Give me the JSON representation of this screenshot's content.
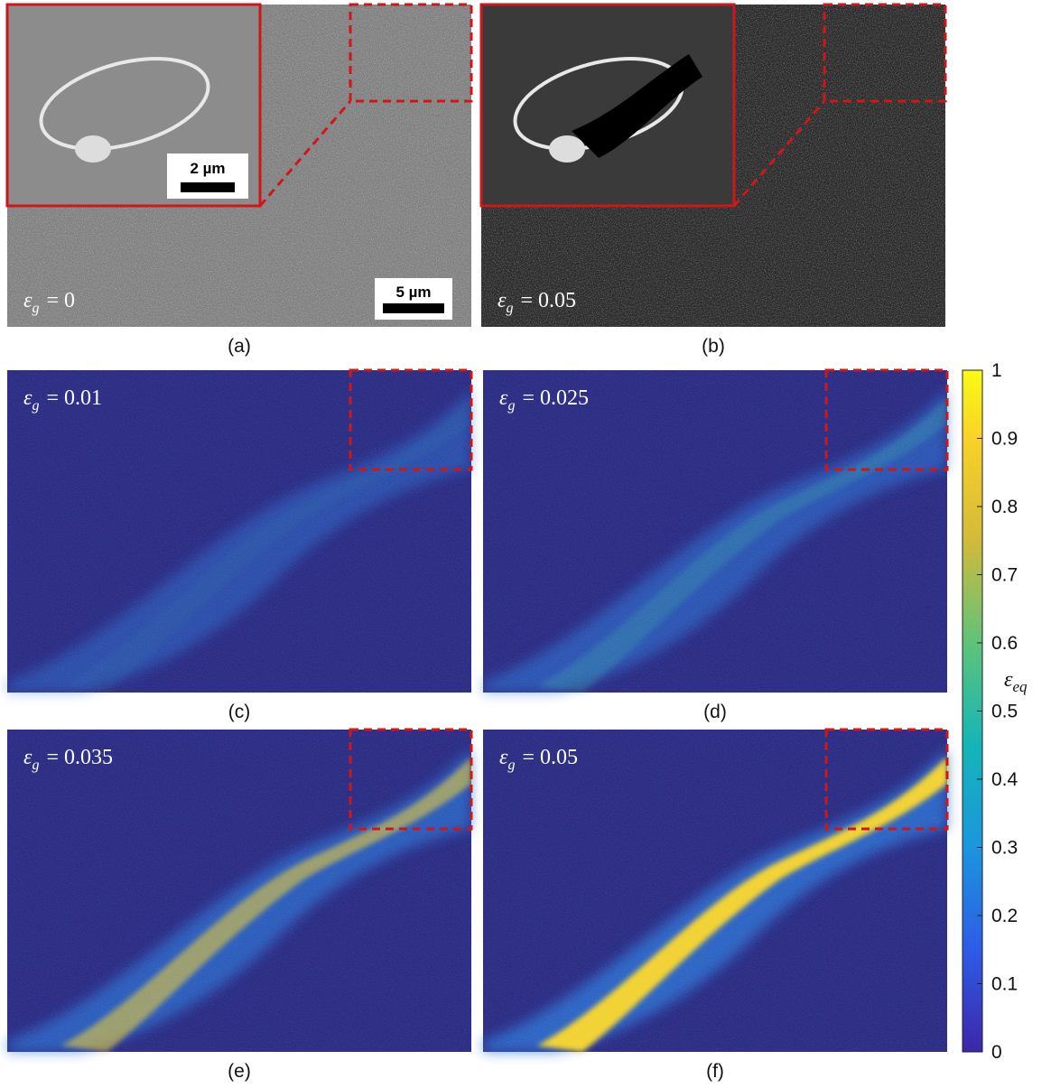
{
  "panels": [
    {
      "label": "(a)",
      "strain": {
        "symbol": "ε",
        "sub": "g",
        "value": "= 0"
      },
      "inset_scale_bar": "2 µm",
      "scale_bar": "5 µm"
    },
    {
      "label": "(b)",
      "strain": {
        "symbol": "ε",
        "sub": "g",
        "value": "= 0.05"
      }
    },
    {
      "label": "(c)",
      "strain": {
        "symbol": "ε",
        "sub": "g",
        "value": "= 0.01"
      }
    },
    {
      "label": "(d)",
      "strain": {
        "symbol": "ε",
        "sub": "g",
        "value": "= 0.025"
      }
    },
    {
      "label": "(e)",
      "strain": {
        "symbol": "ε",
        "sub": "g",
        "value": "= 0.035"
      }
    },
    {
      "label": "(f)",
      "strain": {
        "symbol": "ε",
        "sub": "g",
        "value": "= 0.05"
      }
    }
  ],
  "colorbar": {
    "lim": [
      0,
      1
    ],
    "ticks": [
      0,
      0.1,
      0.2,
      0.3,
      0.4,
      0.5,
      0.6,
      0.7,
      0.8,
      0.9,
      1
    ],
    "label": "ε",
    "label_sub": "eq"
  }
}
